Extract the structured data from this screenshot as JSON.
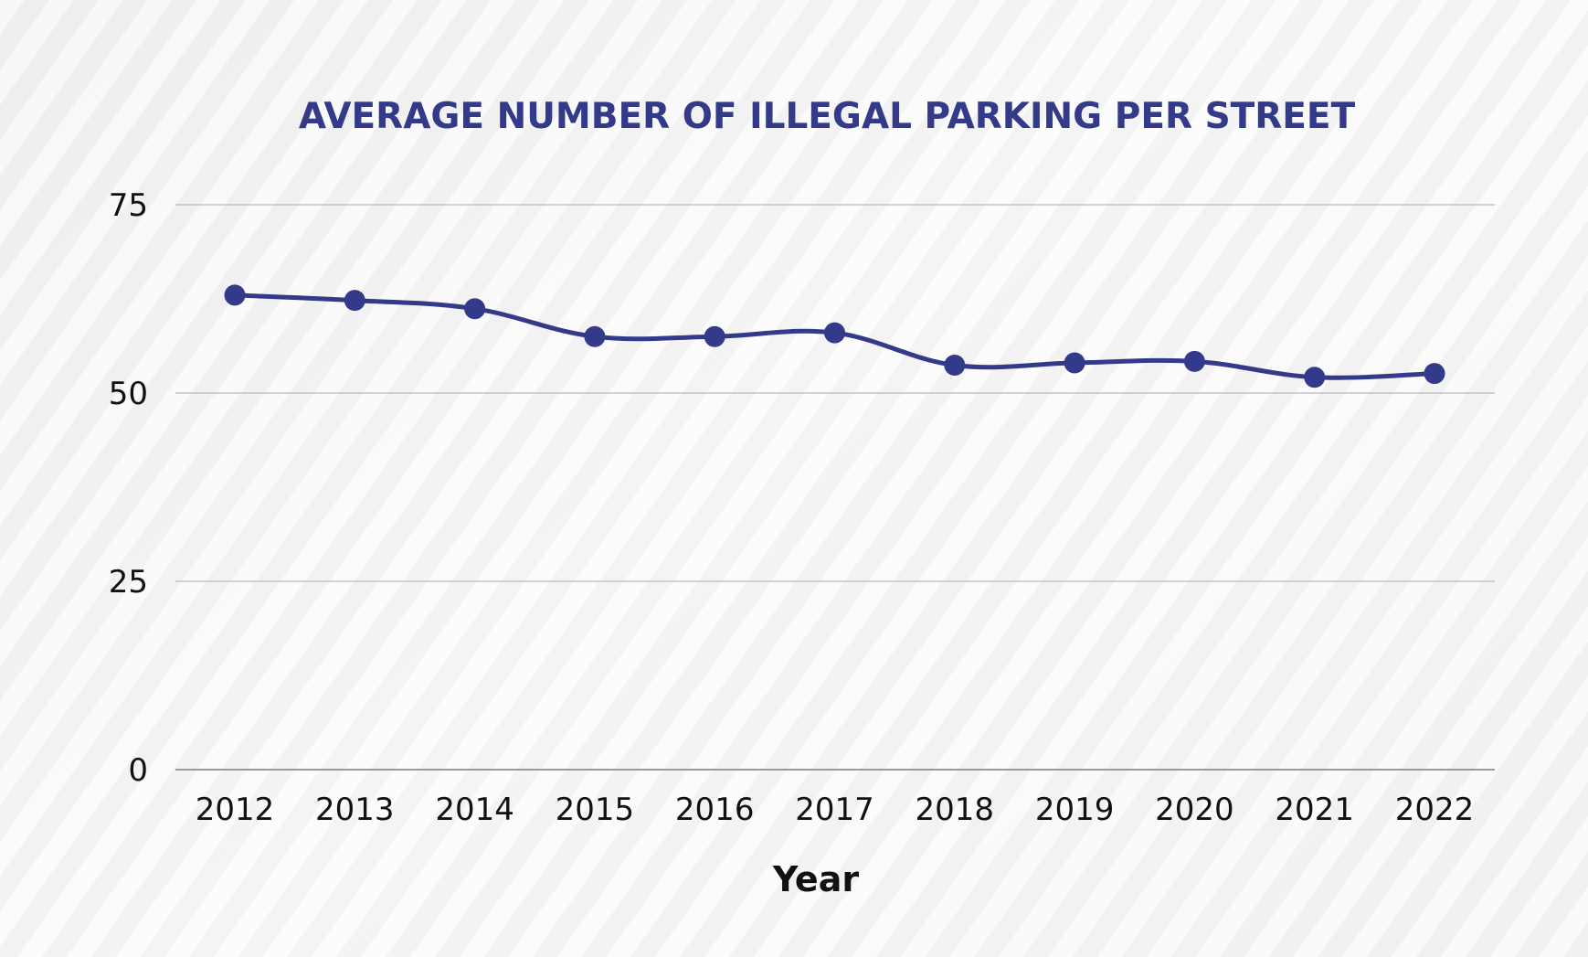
{
  "colors": {
    "series": "#343a8a",
    "grid": "#c4c4c4",
    "baseline": "#9a9a9a",
    "text": "#111111"
  },
  "chart_data": {
    "type": "line",
    "title": "AVERAGE NUMBER OF ILLEGAL PARKING PER STREET",
    "xlabel": "Year",
    "ylabel": "",
    "categories": [
      "2012",
      "2013",
      "2014",
      "2015",
      "2016",
      "2017",
      "2018",
      "2019",
      "2020",
      "2021",
      "2022"
    ],
    "series": [
      {
        "values": [
          63,
          62.3,
          61.2,
          57.5,
          57.5,
          58,
          53.7,
          54,
          54.2,
          52.1,
          52.6
        ],
        "smooth": true,
        "markers": true
      }
    ],
    "ylim": [
      0,
      75
    ],
    "yticks": [
      "0",
      "25",
      "50",
      "75"
    ],
    "grid": true,
    "legend": "none"
  }
}
